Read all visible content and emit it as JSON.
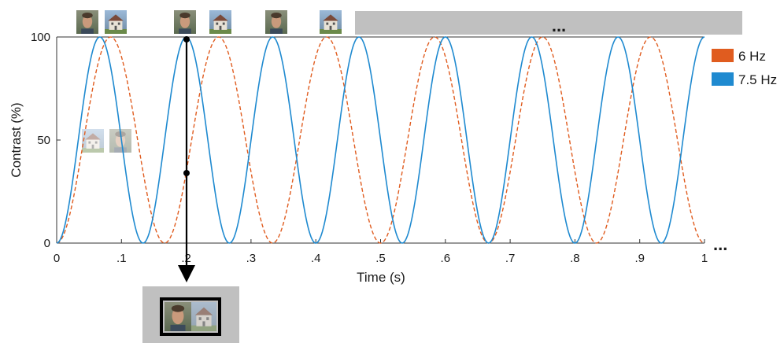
{
  "chart_data": {
    "type": "line",
    "xlabel": "Time (s)",
    "ylabel": "Contrast (%)",
    "xlim": [
      0,
      1
    ],
    "ylim": [
      0,
      100
    ],
    "x_ticks": [
      0,
      0.1,
      0.2,
      0.3,
      0.4,
      0.5,
      0.6,
      0.7,
      0.8,
      0.9,
      1
    ],
    "x_tick_labels": [
      "0",
      ".1",
      ".2",
      ".3",
      ".4",
      ".5",
      ".6",
      ".7",
      ".8",
      ".9",
      "1"
    ],
    "y_ticks": [
      0,
      50,
      100
    ],
    "y_tick_labels": [
      "0",
      "50",
      "100"
    ],
    "grid": false,
    "legend_position": "right",
    "series": [
      {
        "name": "6 Hz",
        "frequency_hz": 6,
        "color": "#e05c1f",
        "style": "dashed",
        "formula": "contrast = 50 * (1 - cos(2*pi*6*t))"
      },
      {
        "name": "7.5 Hz",
        "frequency_hz": 7.5,
        "color": "#1f8ad0",
        "style": "solid",
        "formula": "contrast = 50 * (1 - cos(2*pi*7.5*t))"
      }
    ],
    "annotations": {
      "top_bar_ellipsis": "...",
      "right_ellipsis": "..."
    }
  },
  "images": {
    "top_row": [
      "face-icon",
      "house-icon",
      "face-icon",
      "house-icon",
      "face-icon",
      "house-icon"
    ],
    "left_pair": [
      "house-icon",
      "face-icon"
    ],
    "bottom_composite": [
      "face-icon",
      "house-icon"
    ]
  },
  "colors": {
    "series_6hz": "#e05c1f",
    "series_7_5hz": "#1f8ad0",
    "gray_bar": "#c0c0c0",
    "axis": "#333333"
  }
}
